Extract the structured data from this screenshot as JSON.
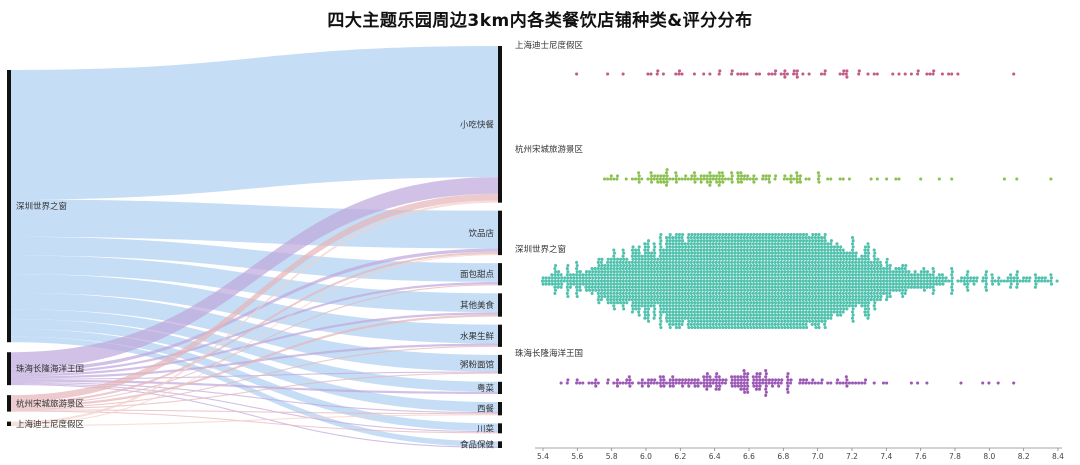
{
  "title": "四大主题乐园周边3km内各类餐饮店铺种类&评分分布",
  "colors": {
    "深圳世界之窗": "#bcd7f5",
    "珠海长隆海洋王国": "#bfa7dc",
    "杭州宋城旅游景区": "#e6b3b8",
    "上海迪士尼度假区": "#f3d0c8",
    "node": "#111111",
    "swarm_上海迪士尼度假区": "#c25b86",
    "swarm_杭州宋城旅游景区": "#8cc152",
    "swarm_深圳世界之窗": "#4fc1ad",
    "swarm_珠海长隆海洋王国": "#9b59b6"
  },
  "chart_data": [
    {
      "type": "sankey",
      "sources": [
        "深圳世界之窗",
        "珠海长隆海洋王国",
        "杭州宋城旅游景区",
        "上海迪士尼度假区"
      ],
      "targets": [
        "小吃快餐",
        "饮品店",
        "面包甜点",
        "其他美食",
        "水果生鲜",
        "粥粉面馆",
        "粤菜",
        "西餐",
        "川菜",
        "食品保健"
      ],
      "flows": [
        {
          "source": "深圳世界之窗",
          "target": "小吃快餐",
          "value": 118
        },
        {
          "source": "深圳世界之窗",
          "target": "饮品店",
          "value": 34
        },
        {
          "source": "深圳世界之窗",
          "target": "面包甜点",
          "value": 17
        },
        {
          "source": "深圳世界之窗",
          "target": "其他美食",
          "value": 17
        },
        {
          "source": "深圳世界之窗",
          "target": "水果生鲜",
          "value": 17
        },
        {
          "source": "深圳世界之窗",
          "target": "粥粉面馆",
          "value": 15
        },
        {
          "source": "深圳世界之窗",
          "target": "粤菜",
          "value": 9
        },
        {
          "source": "深圳世界之窗",
          "target": "西餐",
          "value": 9
        },
        {
          "source": "深圳世界之窗",
          "target": "川菜",
          "value": 7
        },
        {
          "source": "深圳世界之窗",
          "target": "食品保健",
          "value": 5
        },
        {
          "source": "珠海长隆海洋王国",
          "target": "小吃快餐",
          "value": 15
        },
        {
          "source": "珠海长隆海洋王国",
          "target": "饮品店",
          "value": 3
        },
        {
          "source": "珠海长隆海洋王国",
          "target": "面包甜点",
          "value": 2
        },
        {
          "source": "珠海长隆海洋王国",
          "target": "其他美食",
          "value": 2
        },
        {
          "source": "珠海长隆海洋王国",
          "target": "水果生鲜",
          "value": 2
        },
        {
          "source": "珠海长隆海洋王国",
          "target": "粥粉面馆",
          "value": 1
        },
        {
          "source": "珠海长隆海洋王国",
          "target": "粤菜",
          "value": 2
        },
        {
          "source": "珠海长隆海洋王国",
          "target": "西餐",
          "value": 1
        },
        {
          "source": "珠海长隆海洋王国",
          "target": "川菜",
          "value": 1
        },
        {
          "source": "珠海长隆海洋王国",
          "target": "食品保健",
          "value": 1
        },
        {
          "source": "杭州宋城旅游景区",
          "target": "小吃快餐",
          "value": 6
        },
        {
          "source": "杭州宋城旅游景区",
          "target": "饮品店",
          "value": 2
        },
        {
          "source": "杭州宋城旅游景区",
          "target": "面包甜点",
          "value": 1
        },
        {
          "source": "杭州宋城旅游景区",
          "target": "其他美食",
          "value": 2
        },
        {
          "source": "杭州宋城旅游景区",
          "target": "水果生鲜",
          "value": 1
        },
        {
          "source": "杭州宋城旅游景区",
          "target": "粥粉面馆",
          "value": 1
        },
        {
          "source": "杭州宋城旅游景区",
          "target": "西餐",
          "value": 1
        },
        {
          "source": "杭州宋城旅游景区",
          "target": "川菜",
          "value": 1
        },
        {
          "source": "上海迪士尼度假区",
          "target": "小吃快餐",
          "value": 2
        },
        {
          "source": "上海迪士尼度假区",
          "target": "饮品店",
          "value": 1
        },
        {
          "source": "上海迪士尼度假区",
          "target": "西餐",
          "value": 1
        }
      ]
    },
    {
      "type": "beeswarm",
      "xlim": [
        5.4,
        8.4
      ],
      "xticks": [
        "5.4",
        "5.6",
        "5.8",
        "6.0",
        "6.2",
        "6.4",
        "6.6",
        "6.8",
        "7.0",
        "7.2",
        "7.4",
        "7.6",
        "7.8",
        "8.0",
        "8.2",
        "8.4"
      ],
      "groups": [
        {
          "name": "上海迪士尼度假区",
          "count": 70,
          "mean": 6.9,
          "sd": 0.6,
          "min": 5.6,
          "max": 8.15
        },
        {
          "name": "杭州宋城旅游景区",
          "count": 150,
          "mean": 6.4,
          "sd": 0.4,
          "min": 5.75,
          "max": 8.35
        },
        {
          "name": "深圳世界之窗",
          "count": 3200,
          "mean": 6.55,
          "sd": 0.45,
          "min": 5.4,
          "max": 8.4
        },
        {
          "name": "珠海长隆海洋王国",
          "count": 230,
          "mean": 6.45,
          "sd": 0.42,
          "min": 5.5,
          "max": 8.15
        }
      ]
    }
  ]
}
